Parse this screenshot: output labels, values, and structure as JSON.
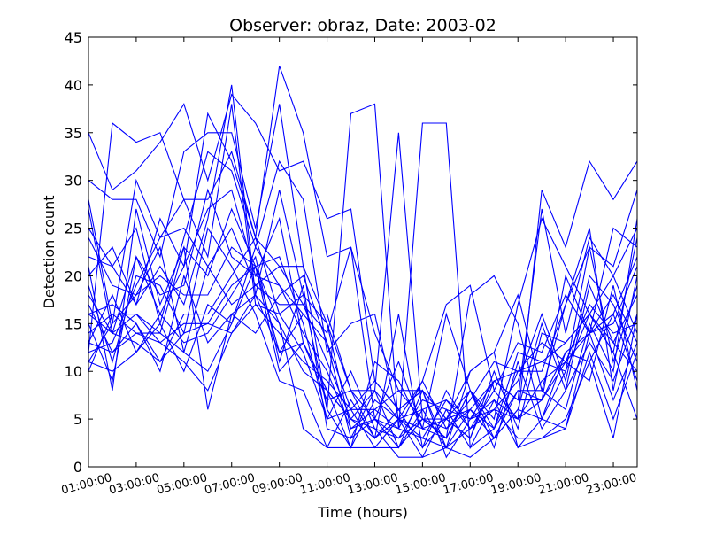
{
  "chart_data": {
    "type": "line",
    "title": "Observer: obraz, Date: 2003-02",
    "xlabel": "Time (hours)",
    "ylabel": "Detection count",
    "ylim": [
      0,
      45
    ],
    "xlim": [
      "01:00:00",
      "24:00:00"
    ],
    "yticks": [
      "0",
      "5",
      "10",
      "15",
      "20",
      "25",
      "30",
      "35",
      "40",
      "45"
    ],
    "xticks": [
      "01:00:00",
      "03:00:00",
      "05:00:00",
      "07:00:00",
      "09:00:00",
      "11:00:00",
      "13:00:00",
      "15:00:00",
      "17:00:00",
      "19:00:00",
      "21:00:00",
      "23:00:00"
    ],
    "line_color": "#0000ff",
    "grid": false,
    "legend": "none",
    "x_hours": [
      1,
      2,
      3,
      4,
      5,
      6,
      7,
      8,
      9,
      10,
      11,
      12,
      13,
      14,
      15,
      16,
      17,
      18,
      19,
      20,
      21,
      22,
      23,
      24
    ],
    "series": [
      {
        "values": [
          35,
          29,
          31,
          34,
          38,
          30,
          39,
          36,
          31,
          32,
          26,
          27,
          9,
          6,
          8,
          2,
          4,
          6,
          5,
          7,
          12,
          14,
          16,
          22
        ]
      },
      {
        "values": [
          12,
          36,
          34,
          35,
          28,
          28,
          33,
          24,
          42,
          35,
          22,
          23,
          14,
          8,
          5,
          4,
          6,
          9,
          7,
          27,
          14,
          24,
          20,
          25
        ]
      },
      {
        "values": [
          30,
          28,
          28,
          22,
          33,
          35,
          35,
          25,
          38,
          21,
          6,
          37,
          38,
          4,
          36,
          36,
          2,
          7,
          5,
          29,
          23,
          32,
          28,
          32
        ]
      },
      {
        "values": [
          28,
          15,
          30,
          24,
          28,
          22,
          38,
          17,
          16,
          18,
          15,
          8,
          8,
          35,
          5,
          3,
          18,
          20,
          15,
          5,
          10,
          23,
          21,
          29
        ]
      },
      {
        "values": [
          22,
          21,
          25,
          15,
          24,
          33,
          31,
          23,
          32,
          28,
          12,
          15,
          16,
          5,
          9,
          17,
          19,
          8,
          13,
          12,
          18,
          14,
          25,
          23
        ]
      },
      {
        "values": [
          15,
          9,
          22,
          16,
          21,
          37,
          32,
          24,
          21,
          17,
          14,
          23,
          5,
          11,
          4,
          16,
          8,
          5,
          17,
          26,
          21,
          16,
          20,
          14
        ]
      },
      {
        "values": [
          25,
          21,
          17,
          21,
          17,
          26,
          40,
          18,
          29,
          18,
          6,
          2,
          11,
          9,
          4,
          5,
          10,
          12,
          18,
          8,
          17,
          23,
          11,
          19
        ]
      },
      {
        "values": [
          20,
          23,
          17,
          26,
          21,
          27,
          29,
          20,
          26,
          13,
          8,
          5,
          3,
          16,
          2,
          5,
          8,
          3,
          6,
          15,
          8,
          19,
          13,
          10
        ]
      },
      {
        "values": [
          18,
          14,
          22,
          18,
          19,
          29,
          22,
          20,
          19,
          16,
          13,
          6,
          9,
          6,
          8,
          5,
          6,
          4,
          10,
          11,
          13,
          16,
          12,
          24
        ]
      },
      {
        "values": [
          14,
          16,
          16,
          14,
          23,
          20,
          27,
          21,
          22,
          15,
          5,
          10,
          4,
          3,
          7,
          6,
          5,
          9,
          7,
          7,
          20,
          14,
          7,
          13
        ]
      },
      {
        "values": [
          12,
          13,
          19,
          24,
          25,
          21,
          17,
          19,
          21,
          21,
          15,
          4,
          6,
          4,
          9,
          4,
          7,
          11,
          10,
          10,
          17,
          25,
          8,
          20
        ]
      },
      {
        "values": [
          24,
          19,
          18,
          20,
          18,
          18,
          23,
          21,
          10,
          13,
          7,
          8,
          3,
          6,
          2,
          8,
          4,
          8,
          5,
          9,
          11,
          17,
          14,
          15
        ]
      },
      {
        "values": [
          11,
          15,
          18,
          23,
          12,
          21,
          25,
          19,
          17,
          17,
          11,
          5,
          8,
          5,
          3,
          7,
          4,
          6,
          9,
          16,
          9,
          20,
          17,
          11
        ]
      },
      {
        "values": [
          16,
          17,
          15,
          11,
          16,
          16,
          20,
          24,
          16,
          12,
          5,
          6,
          6,
          8,
          8,
          5,
          3,
          10,
          4,
          14,
          13,
          16,
          13,
          18
        ]
      },
      {
        "values": [
          13,
          18,
          12,
          16,
          13,
          14,
          18,
          22,
          11,
          19,
          4,
          3,
          5,
          3,
          5,
          3,
          8,
          4,
          8,
          8,
          6,
          15,
          10,
          26
        ]
      },
      {
        "values": [
          21,
          8,
          27,
          17,
          23,
          6,
          16,
          14,
          18,
          20,
          13,
          3,
          8,
          2,
          6,
          7,
          5,
          7,
          2,
          5,
          4,
          14,
          18,
          13
        ]
      },
      {
        "values": [
          19,
          11,
          20,
          19,
          14,
          25,
          21,
          16,
          9,
          8,
          2,
          2,
          7,
          5,
          4,
          3,
          8,
          2,
          11,
          4,
          8,
          13,
          9,
          16
        ]
      },
      {
        "values": [
          17,
          12,
          14,
          13,
          15,
          15,
          14,
          18,
          15,
          4,
          2,
          7,
          3,
          5,
          1,
          2,
          1,
          3,
          6,
          5,
          12,
          11,
          16,
          9
        ]
      },
      {
        "values": [
          11,
          10,
          12,
          15,
          10,
          17,
          15,
          21,
          12,
          13,
          8,
          2,
          2,
          2,
          8,
          1,
          5,
          6,
          3,
          3,
          4,
          12,
          5,
          12
        ]
      },
      {
        "values": [
          27,
          14,
          16,
          13,
          11,
          8,
          14,
          17,
          14,
          11,
          9,
          6,
          2,
          5,
          6,
          2,
          10,
          12,
          2,
          3,
          5,
          11,
          3,
          16
        ]
      },
      {
        "values": [
          16,
          14,
          13,
          11,
          14,
          15,
          19,
          21,
          15,
          10,
          8,
          5,
          4,
          1,
          1,
          6,
          2,
          4,
          12,
          11,
          10,
          16,
          12,
          5
        ]
      },
      {
        "values": [
          13,
          12,
          15,
          10,
          20,
          13,
          16,
          18,
          12,
          16,
          16,
          8,
          5,
          4,
          3,
          2,
          6,
          3,
          8,
          7,
          11,
          14,
          15,
          21
        ]
      },
      {
        "values": [
          10,
          16,
          14,
          14,
          12,
          10,
          15,
          23,
          19,
          14,
          10,
          4,
          5,
          2,
          5,
          5,
          3,
          9,
          10,
          13,
          11,
          9,
          19,
          8
        ]
      }
    ]
  }
}
